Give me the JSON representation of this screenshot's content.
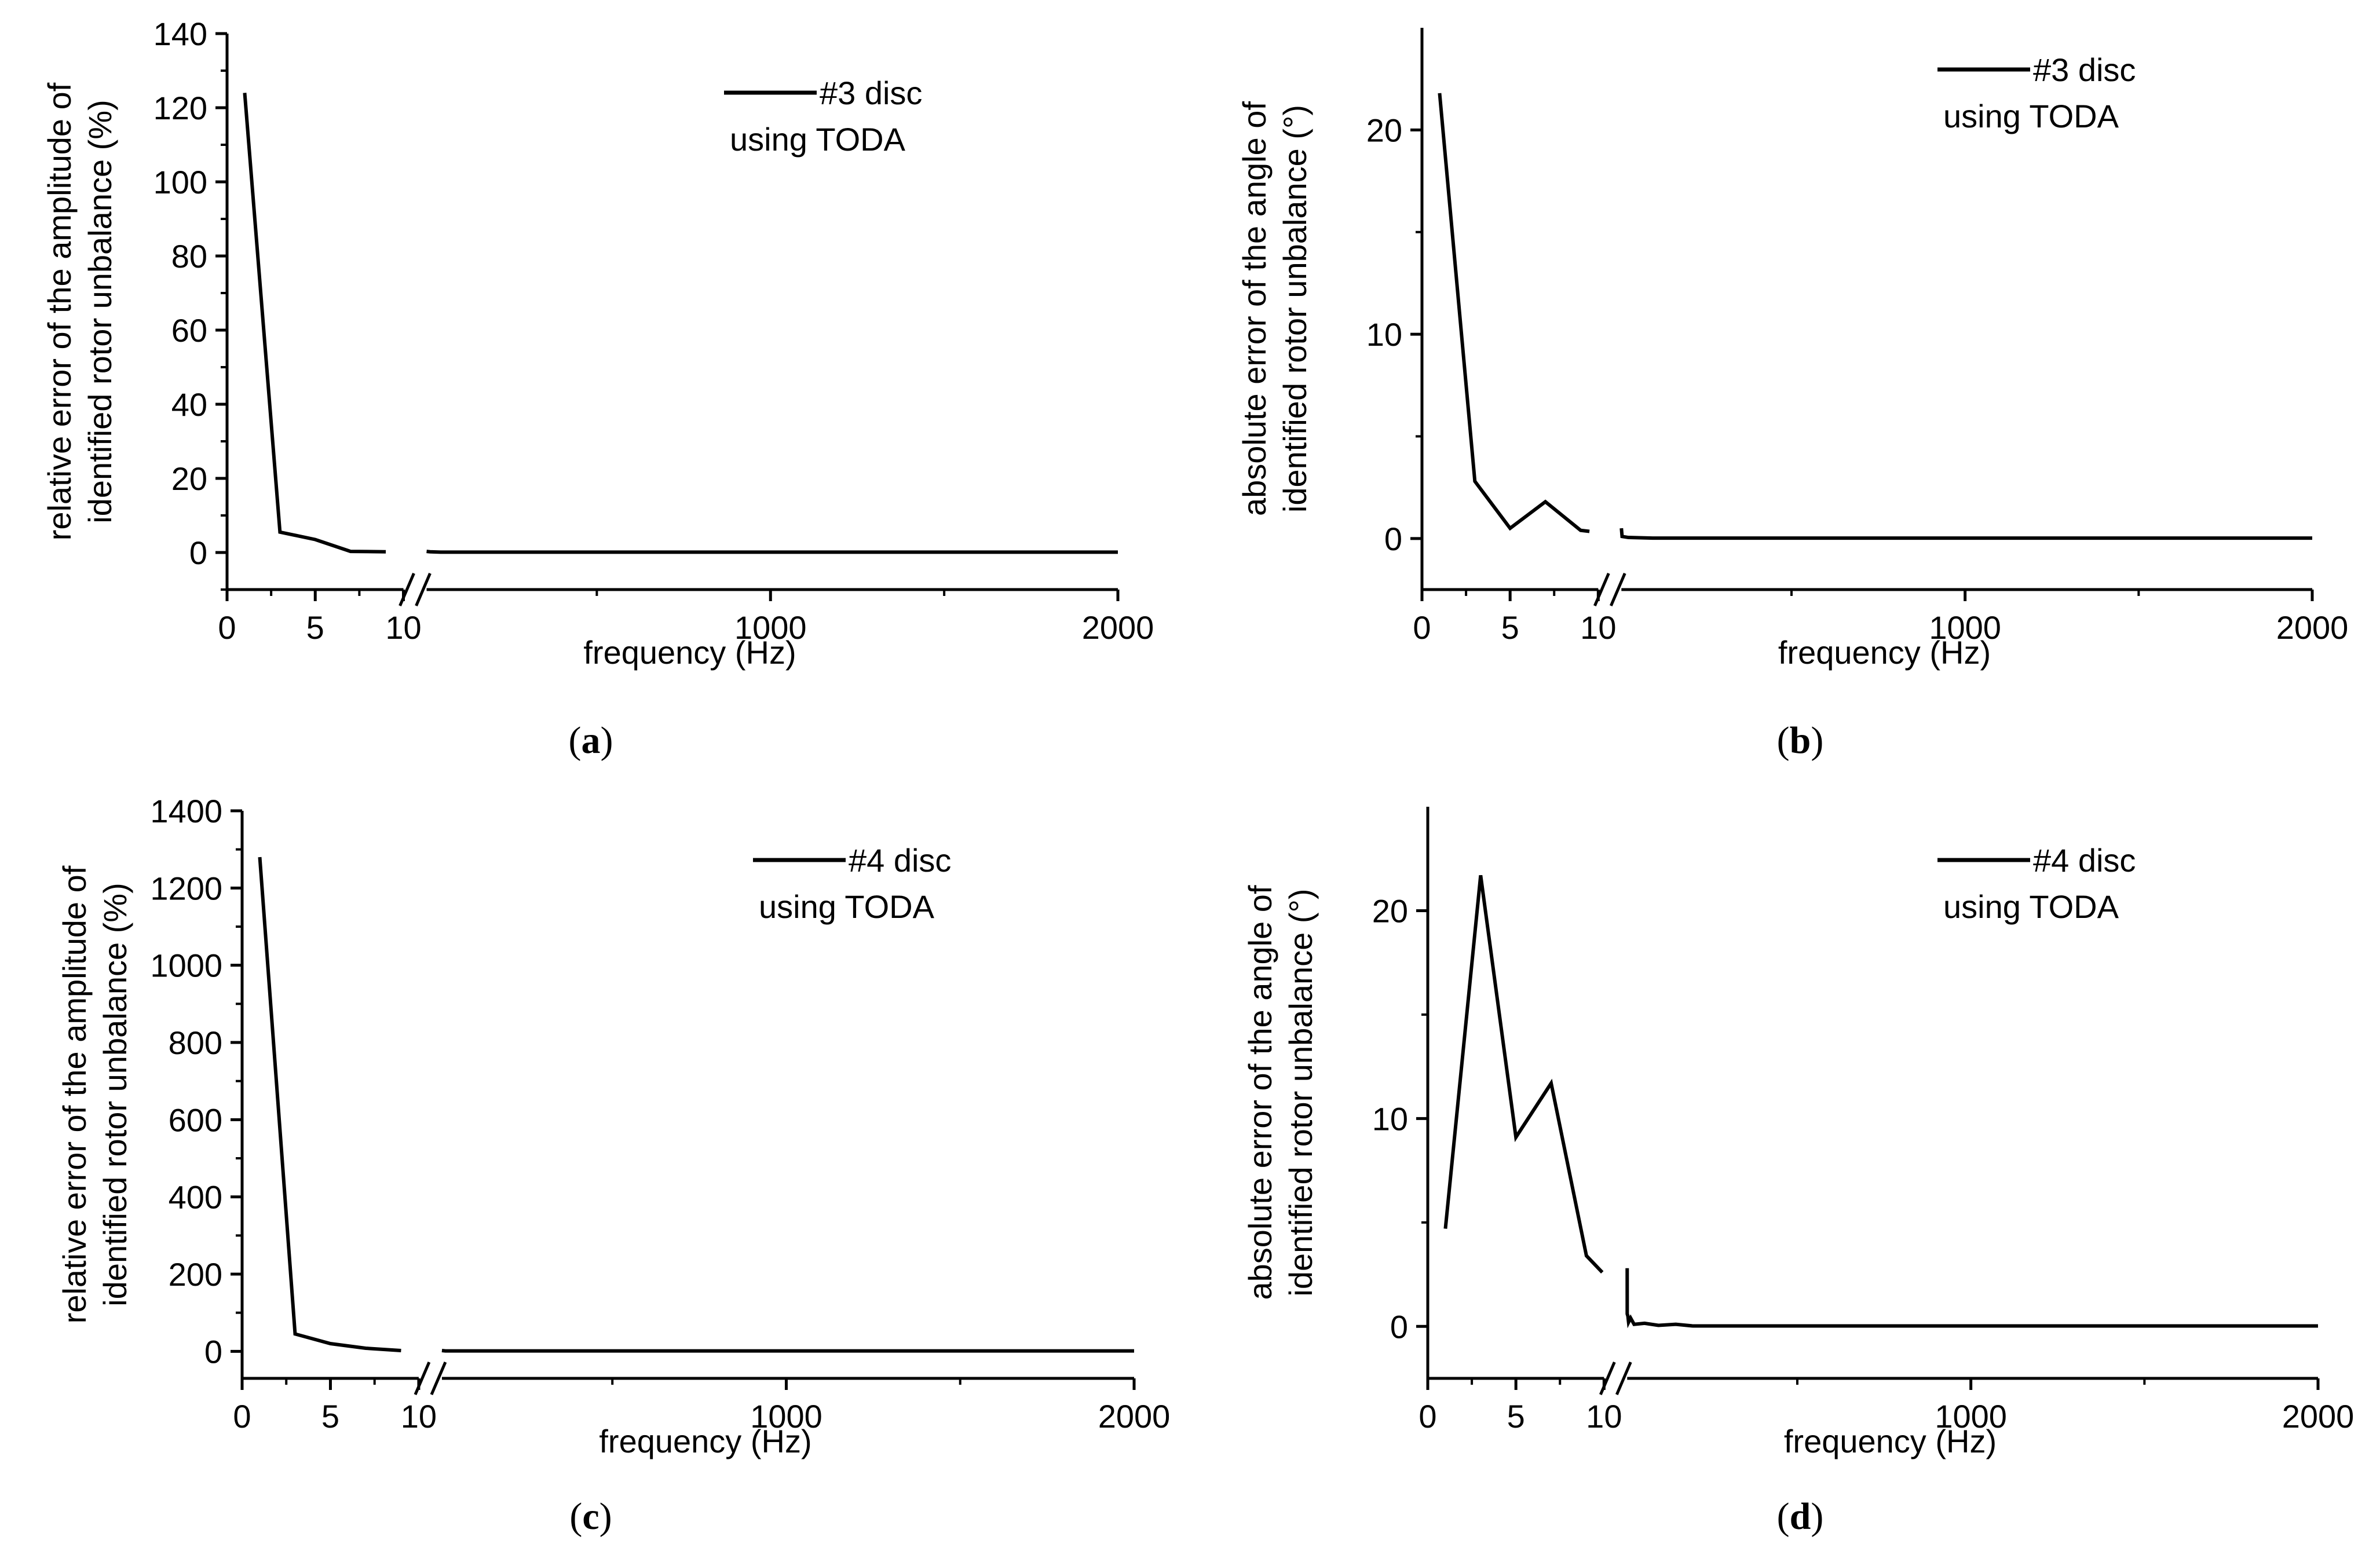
{
  "chart_data": [
    {
      "panel": "a",
      "type": "line",
      "ylabel_line1": "relative error of the amplitude of",
      "ylabel_line2": "identified rotor unbalance (%)",
      "xlabel": "frequency (Hz)",
      "ylim": [
        -10,
        140
      ],
      "yticks": [
        0,
        20,
        40,
        60,
        80,
        100,
        120,
        140
      ],
      "ytick_labels": [
        "0",
        "20",
        "40",
        "60",
        "80",
        "100",
        "120",
        "140"
      ],
      "xticks_low": [
        0,
        5,
        10
      ],
      "xticks_low_labels": [
        "0",
        "5",
        "10"
      ],
      "xticks_high": [
        1000,
        2000
      ],
      "xticks_high_labels": [
        "1000",
        "2000"
      ],
      "legend": {
        "series": "#3 disc",
        "method": "using TODA"
      },
      "low_segment": {
        "x": [
          1,
          3,
          5,
          7,
          9
        ],
        "y": [
          124,
          5.5,
          3.5,
          0.3,
          0.2
        ]
      },
      "high_segment": {
        "x": [
          10,
          20,
          50,
          100,
          500,
          1000,
          1500,
          2000
        ],
        "y": [
          0.3,
          0.2,
          0.1,
          0.1,
          0.1,
          0.1,
          0.1,
          0.1
        ]
      }
    },
    {
      "panel": "b",
      "type": "line",
      "ylabel_line1": "absolute error of the angle of",
      "ylabel_line2": "identified rotor unbalance (°)",
      "xlabel": "frequency (Hz)",
      "ylim": [
        -2.5,
        25
      ],
      "yticks": [
        0,
        10,
        20
      ],
      "ytick_labels": [
        "0",
        "10",
        "20"
      ],
      "xticks_low": [
        0,
        5,
        10
      ],
      "xticks_low_labels": [
        "0",
        "5",
        "10"
      ],
      "xticks_high": [
        1000,
        2000
      ],
      "xticks_high_labels": [
        "1000",
        "2000"
      ],
      "legend": {
        "series": "#3 disc",
        "method": "using TODA"
      },
      "low_segment": {
        "x": [
          1,
          3,
          5,
          7,
          9,
          9.5
        ],
        "y": [
          21.8,
          2.8,
          0.5,
          1.8,
          0.4,
          0.35
        ]
      },
      "high_segment": {
        "x": [
          10,
          12,
          30,
          100,
          500,
          1000,
          2000
        ],
        "y": [
          0.5,
          0.1,
          0.05,
          0.02,
          0.02,
          0.02,
          0.02
        ]
      }
    },
    {
      "panel": "c",
      "type": "line",
      "ylabel_line1": "relative error of the amplitude of",
      "ylabel_line2": "identified rotor unbalance (%)",
      "xlabel": "frequency (Hz)",
      "ylim": [
        -70,
        1400
      ],
      "yticks": [
        0,
        200,
        400,
        600,
        800,
        1000,
        1200,
        1400
      ],
      "ytick_labels": [
        "0",
        "200",
        "400",
        "600",
        "800",
        "1000",
        "1200",
        "1400"
      ],
      "xticks_low": [
        0,
        5,
        10
      ],
      "xticks_low_labels": [
        "0",
        "5",
        "10"
      ],
      "xticks_high": [
        1000,
        2000
      ],
      "xticks_high_labels": [
        "1000",
        "2000"
      ],
      "legend": {
        "series": "#4 disc",
        "method": "using TODA"
      },
      "low_segment": {
        "x": [
          1,
          3,
          5,
          7,
          9
        ],
        "y": [
          1280,
          45,
          20,
          8,
          2
        ]
      },
      "high_segment": {
        "x": [
          10,
          20,
          100,
          500,
          1000,
          1500,
          2000
        ],
        "y": [
          2,
          1,
          1,
          1,
          1,
          1,
          1
        ]
      }
    },
    {
      "panel": "d",
      "type": "line",
      "ylabel_line1": "absolute error of the angle of",
      "ylabel_line2": "identified rotor unbalance (°)",
      "xlabel": "frequency (Hz)",
      "ylim": [
        -2.5,
        25
      ],
      "yticks": [
        0,
        10,
        20
      ],
      "ytick_labels": [
        "0",
        "10",
        "20"
      ],
      "xticks_low": [
        0,
        5,
        10
      ],
      "xticks_low_labels": [
        "0",
        "5",
        "10"
      ],
      "xticks_high": [
        1000,
        2000
      ],
      "xticks_high_labels": [
        "1000",
        "2000"
      ],
      "legend": {
        "series": "#4 disc",
        "method": "using TODA"
      },
      "low_segment": {
        "x": [
          1,
          3,
          5,
          7,
          9,
          9.9
        ],
        "y": [
          4.7,
          21.7,
          9.1,
          11.7,
          3.4,
          2.6
        ]
      },
      "high_segment": {
        "x": [
          10,
          10.1,
          12,
          14,
          20,
          30,
          60,
          100,
          150,
          200,
          220,
          500,
          1000,
          2000
        ],
        "y": [
          2.8,
          0.6,
          0.5,
          0.2,
          0.4,
          0.1,
          0.15,
          0.05,
          0.1,
          0.02,
          0.02,
          0.02,
          0.02,
          0.02
        ]
      }
    }
  ],
  "panel_labels": [
    "a",
    "b",
    "c",
    "d"
  ]
}
